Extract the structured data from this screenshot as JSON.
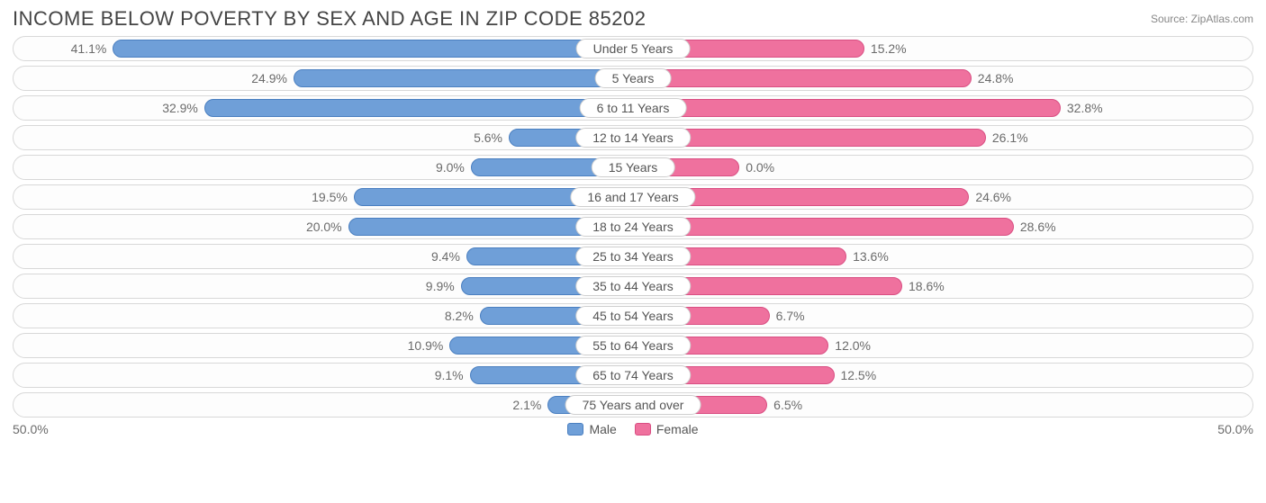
{
  "title": "INCOME BELOW POVERTY BY SEX AND AGE IN ZIP CODE 85202",
  "source": "Source: ZipAtlas.com",
  "chart": {
    "type": "diverging-bar",
    "axis_max": 50.0,
    "axis_left_label": "50.0%",
    "axis_right_label": "50.0%",
    "male_color": "#6f9fd8",
    "male_border": "#4a7fc0",
    "female_color": "#ef719e",
    "female_border": "#d94e82",
    "row_bg": "#fdfdfd",
    "row_border": "#d8d8d8",
    "label_color": "#6b6b6b",
    "legend": {
      "male": "Male",
      "female": "Female"
    },
    "rows": [
      {
        "category": "Under 5 Years",
        "male": 41.1,
        "female": 15.2,
        "male_label": "41.1%",
        "female_label": "15.2%"
      },
      {
        "category": "5 Years",
        "male": 24.9,
        "female": 24.8,
        "male_label": "24.9%",
        "female_label": "24.8%"
      },
      {
        "category": "6 to 11 Years",
        "male": 32.9,
        "female": 32.8,
        "male_label": "32.9%",
        "female_label": "32.8%"
      },
      {
        "category": "12 to 14 Years",
        "male": 5.6,
        "female": 26.1,
        "male_label": "5.6%",
        "female_label": "26.1%"
      },
      {
        "category": "15 Years",
        "male": 9.0,
        "female": 0.0,
        "male_label": "9.0%",
        "female_label": "0.0%",
        "female_min": 4.0
      },
      {
        "category": "16 and 17 Years",
        "male": 19.5,
        "female": 24.6,
        "male_label": "19.5%",
        "female_label": "24.6%"
      },
      {
        "category": "18 to 24 Years",
        "male": 20.0,
        "female": 28.6,
        "male_label": "20.0%",
        "female_label": "28.6%"
      },
      {
        "category": "25 to 34 Years",
        "male": 9.4,
        "female": 13.6,
        "male_label": "9.4%",
        "female_label": "13.6%"
      },
      {
        "category": "35 to 44 Years",
        "male": 9.9,
        "female": 18.6,
        "male_label": "9.9%",
        "female_label": "18.6%"
      },
      {
        "category": "45 to 54 Years",
        "male": 8.2,
        "female": 6.7,
        "male_label": "8.2%",
        "female_label": "6.7%"
      },
      {
        "category": "55 to 64 Years",
        "male": 10.9,
        "female": 12.0,
        "male_label": "10.9%",
        "female_label": "12.0%"
      },
      {
        "category": "65 to 74 Years",
        "male": 9.1,
        "female": 12.5,
        "male_label": "9.1%",
        "female_label": "12.5%"
      },
      {
        "category": "75 Years and over",
        "male": 2.1,
        "female": 6.5,
        "male_label": "2.1%",
        "female_label": "6.5%"
      }
    ]
  }
}
